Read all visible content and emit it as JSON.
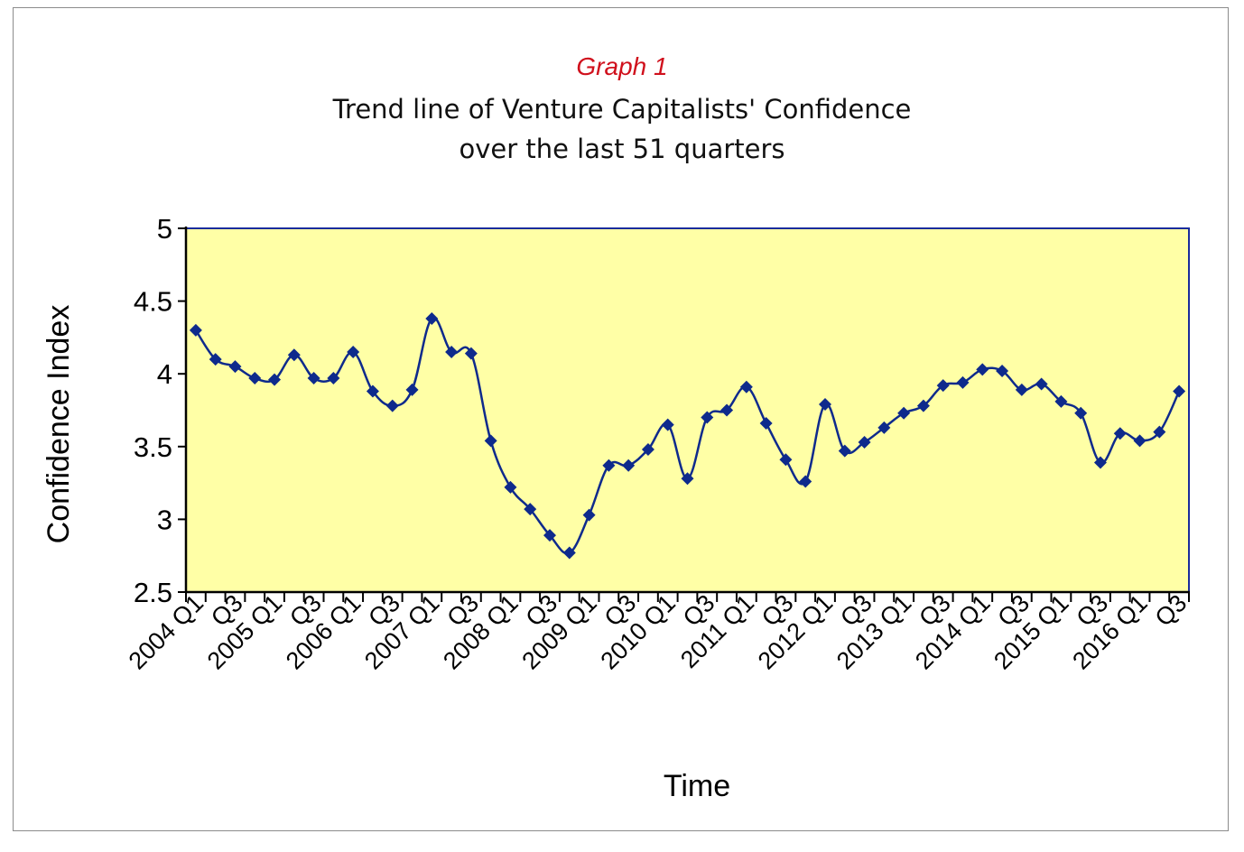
{
  "graph_label": "Graph 1",
  "title_lines": [
    "Trend line of Venture Capitalists' Confidence",
    "over the last 51 quarters"
  ],
  "colors": {
    "plot_bg": "#ffffa6",
    "plot_border": "#1a2c9c",
    "series": "#0e2a8c",
    "graph_label": "#d0101c"
  },
  "chart_data": {
    "type": "line",
    "title": "Trend line of Venture Capitalists' Confidence over the last 51 quarters",
    "xlabel": "Time",
    "ylabel": "Confidence Index",
    "ylim": [
      2.5,
      5
    ],
    "yticks": [
      2.5,
      3,
      3.5,
      4,
      4.5,
      5
    ],
    "ytick_labels": [
      "2.5",
      "3",
      "3.5",
      "4",
      "4.5",
      "5"
    ],
    "grid": false,
    "marker": "diamond",
    "categories": [
      "2004 Q1",
      "Q2",
      "Q3",
      "Q4",
      "2005 Q1",
      "Q2",
      "Q3",
      "Q4",
      "2006 Q1",
      "Q2",
      "Q3",
      "Q4",
      "2007 Q1",
      "Q2",
      "Q3",
      "Q4",
      "2008 Q1",
      "Q2",
      "Q3",
      "Q4",
      "2009 Q1",
      "Q2",
      "Q3",
      "Q4",
      "2010 Q1",
      "Q2",
      "Q3",
      "Q4",
      "2011 Q1",
      "Q2",
      "Q3",
      "Q4",
      "2012 Q1",
      "Q2",
      "Q3",
      "Q4",
      "2013 Q1",
      "Q2",
      "Q3",
      "Q4",
      "2014 Q1",
      "Q2",
      "Q3",
      "Q4",
      "2015 Q1",
      "Q2",
      "Q3",
      "Q4",
      "2016 Q1",
      "Q2",
      "Q3"
    ],
    "x_tick_labels": [
      "2004 Q1",
      "Q3",
      "2005 Q1",
      "Q3",
      "2006 Q1",
      "Q3",
      "2007 Q1",
      "Q3",
      "2008 Q1",
      "Q3",
      "2009 Q1",
      "Q3",
      "2010 Q1",
      "Q3",
      "2011 Q1",
      "Q3",
      "2012 Q1",
      "Q3",
      "2013 Q1",
      "Q3",
      "2014 Q1",
      "Q3",
      "2015 Q1",
      "Q3",
      "2016 Q1",
      "Q3"
    ],
    "series": [
      {
        "name": "Confidence Index",
        "values": [
          4.3,
          4.1,
          4.05,
          3.97,
          3.96,
          4.13,
          3.97,
          3.97,
          4.15,
          3.88,
          3.78,
          3.89,
          4.38,
          4.15,
          4.14,
          3.54,
          3.22,
          3.07,
          2.89,
          2.77,
          3.03,
          3.37,
          3.37,
          3.48,
          3.65,
          3.28,
          3.7,
          3.75,
          3.91,
          3.66,
          3.41,
          3.26,
          3.79,
          3.47,
          3.53,
          3.63,
          3.73,
          3.78,
          3.92,
          3.94,
          4.03,
          4.02,
          3.89,
          3.93,
          3.81,
          3.73,
          3.39,
          3.59,
          3.54,
          3.6,
          3.88
        ]
      }
    ]
  }
}
